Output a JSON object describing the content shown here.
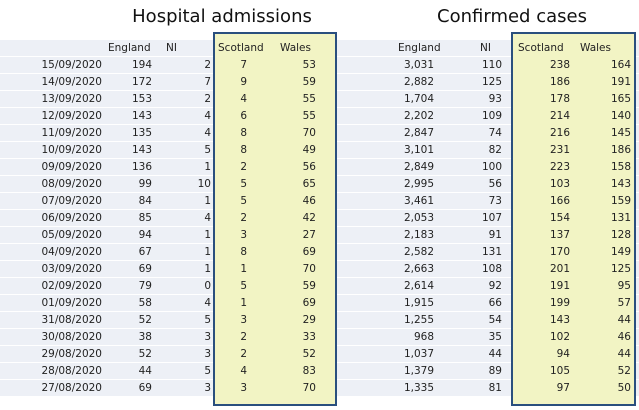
{
  "tables": [
    {
      "title": "Hospital admissions",
      "header": [
        "England",
        "NI",
        "Scotland",
        "Wales"
      ],
      "rows": [
        [
          "15/09/2020",
          "194",
          "2",
          "7",
          "53"
        ],
        [
          "14/09/2020",
          "172",
          "7",
          "9",
          "59"
        ],
        [
          "13/09/2020",
          "153",
          "2",
          "4",
          "55"
        ],
        [
          "12/09/2020",
          "143",
          "4",
          "6",
          "55"
        ],
        [
          "11/09/2020",
          "135",
          "4",
          "8",
          "70"
        ],
        [
          "10/09/2020",
          "143",
          "5",
          "8",
          "49"
        ],
        [
          "09/09/2020",
          "136",
          "1",
          "2",
          "56"
        ],
        [
          "08/09/2020",
          "99",
          "10",
          "5",
          "65"
        ],
        [
          "07/09/2020",
          "84",
          "1",
          "5",
          "46"
        ],
        [
          "06/09/2020",
          "85",
          "4",
          "2",
          "42"
        ],
        [
          "05/09/2020",
          "94",
          "1",
          "3",
          "27"
        ],
        [
          "04/09/2020",
          "67",
          "1",
          "8",
          "69"
        ],
        [
          "03/09/2020",
          "69",
          "1",
          "1",
          "70"
        ],
        [
          "02/09/2020",
          "79",
          "0",
          "5",
          "59"
        ],
        [
          "01/09/2020",
          "58",
          "4",
          "1",
          "69"
        ],
        [
          "31/08/2020",
          "52",
          "5",
          "3",
          "29"
        ],
        [
          "30/08/2020",
          "38",
          "3",
          "2",
          "33"
        ],
        [
          "29/08/2020",
          "52",
          "3",
          "2",
          "52"
        ],
        [
          "28/08/2020",
          "44",
          "5",
          "4",
          "83"
        ],
        [
          "27/08/2020",
          "69",
          "3",
          "3",
          "70"
        ]
      ]
    },
    {
      "title": "Confirmed cases",
      "header": [
        "England",
        "NI",
        "Scotland",
        "Wales"
      ],
      "rows": [
        [
          "3,031",
          "110",
          "238",
          "164"
        ],
        [
          "2,882",
          "125",
          "186",
          "191"
        ],
        [
          "1,704",
          "93",
          "178",
          "165"
        ],
        [
          "2,202",
          "109",
          "214",
          "140"
        ],
        [
          "2,847",
          "74",
          "216",
          "145"
        ],
        [
          "3,101",
          "82",
          "231",
          "186"
        ],
        [
          "2,849",
          "100",
          "223",
          "158"
        ],
        [
          "2,995",
          "56",
          "103",
          "143"
        ],
        [
          "3,461",
          "73",
          "166",
          "159"
        ],
        [
          "2,053",
          "107",
          "154",
          "131"
        ],
        [
          "2,183",
          "91",
          "137",
          "128"
        ],
        [
          "2,582",
          "131",
          "170",
          "149"
        ],
        [
          "2,663",
          "108",
          "201",
          "125"
        ],
        [
          "2,614",
          "92",
          "191",
          "95"
        ],
        [
          "1,915",
          "66",
          "199",
          "57"
        ],
        [
          "1,255",
          "54",
          "143",
          "44"
        ],
        [
          "968",
          "35",
          "102",
          "46"
        ],
        [
          "1,037",
          "44",
          "94",
          "44"
        ],
        [
          "1,379",
          "89",
          "105",
          "52"
        ],
        [
          "1,335",
          "81",
          "97",
          "50"
        ]
      ]
    }
  ]
}
